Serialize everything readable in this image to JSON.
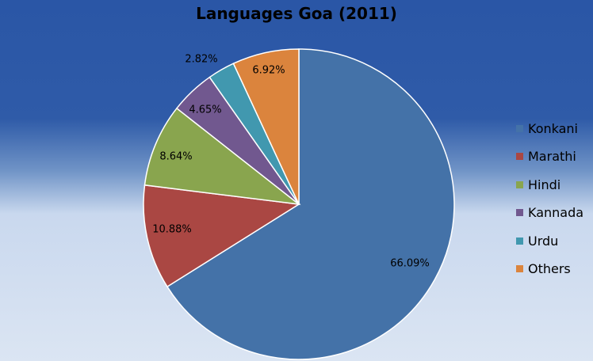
{
  "chart_data": {
    "type": "pie",
    "title": "Languages Goa (2011)",
    "categories": [
      "Konkani",
      "Marathi",
      "Hindi",
      "Kannada",
      "Urdu",
      "Others"
    ],
    "values": [
      66.09,
      10.88,
      8.64,
      4.65,
      2.82,
      6.92
    ],
    "value_labels": [
      "66.09%",
      "10.88%",
      "8.64%",
      "4.65%",
      "2.82%",
      "6.92%"
    ],
    "colors": [
      "#4472a8",
      "#aa4743",
      "#89a54e",
      "#71588f",
      "#4198af",
      "#db843d"
    ],
    "legend_position": "right",
    "start_angle": "12 o'clock",
    "direction": "clockwise"
  }
}
